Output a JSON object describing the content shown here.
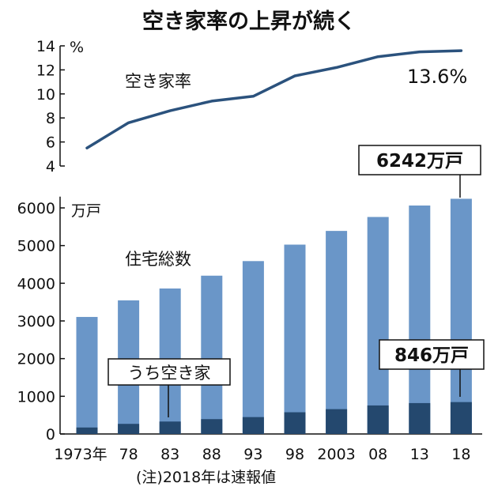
{
  "title": "空き家率の上昇が続く",
  "note": "(注)2018年は速報値",
  "chart_data": [
    {
      "type": "line",
      "categories": [
        "1973",
        "78",
        "83",
        "88",
        "93",
        "98",
        "2003",
        "08",
        "13",
        "18"
      ],
      "series": [
        {
          "name": "空き家率",
          "values": [
            5.5,
            7.6,
            8.6,
            9.4,
            9.8,
            11.5,
            12.2,
            13.1,
            13.5,
            13.6
          ]
        }
      ],
      "unit": "%",
      "ylim": [
        4,
        14
      ],
      "yticks": [
        "4",
        "6",
        "8",
        "10",
        "12",
        "14"
      ],
      "end_label": "13.6%",
      "grid": false
    },
    {
      "type": "bar",
      "categories": [
        "1973",
        "78",
        "83",
        "88",
        "93",
        "98",
        "2003",
        "08",
        "13",
        "18"
      ],
      "x_tick_labels": [
        "1973年",
        "78",
        "83",
        "88",
        "93",
        "98",
        "2003",
        "08",
        "13",
        "18"
      ],
      "series": [
        {
          "name": "住宅総数",
          "values": [
            3106,
            3545,
            3861,
            4201,
            4588,
            5025,
            5389,
            5759,
            6063,
            6242
          ],
          "color": "#6a96c8"
        },
        {
          "name": "うち空き家",
          "values": [
            172,
            268,
            330,
            394,
            448,
            576,
            659,
            757,
            820,
            846
          ],
          "color": "#24486e"
        }
      ],
      "unit": "万戸",
      "ylim": [
        0,
        6300
      ],
      "yticks": [
        "0",
        "1000",
        "2000",
        "3000",
        "4000",
        "5000",
        "6000"
      ],
      "callouts": {
        "total": "6242万戸",
        "vacant": "846万戸"
      },
      "grid": false
    }
  ]
}
